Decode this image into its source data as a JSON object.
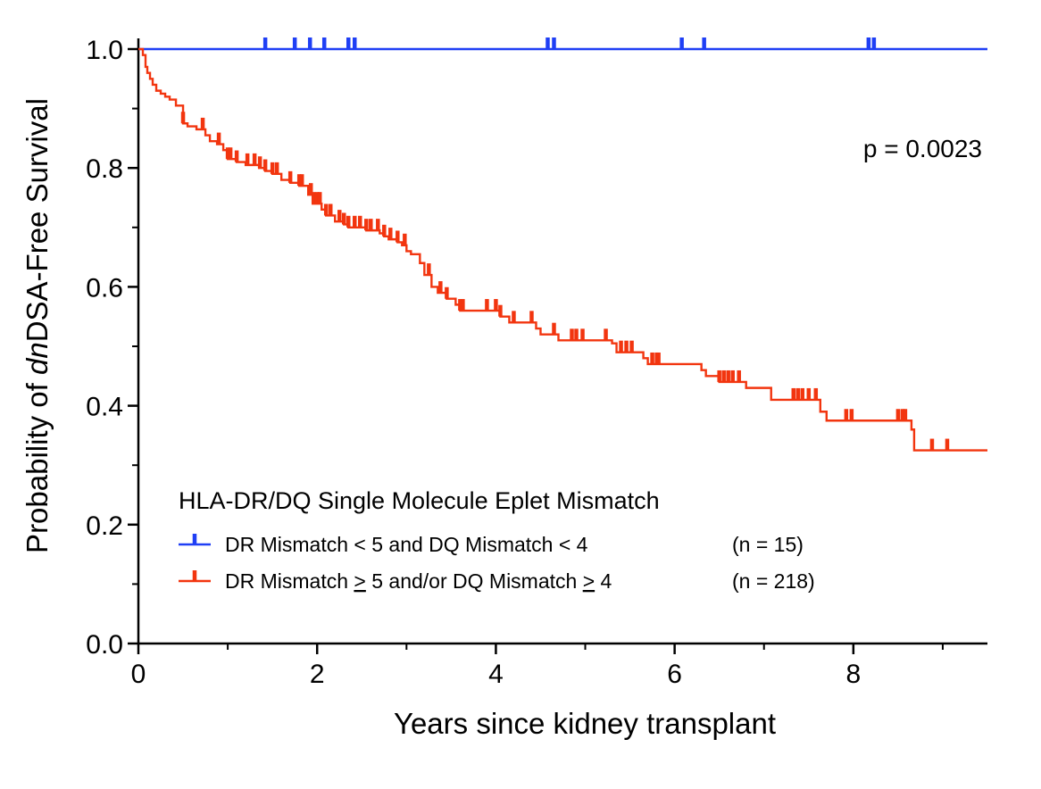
{
  "chart_data": {
    "type": "line",
    "subtype": "kaplan-meier",
    "xlabel": "Years since kidney transplant",
    "ylabel_pre": "Probability of ",
    "ylabel_italic": "dn",
    "ylabel_post": "DSA-Free Survival",
    "xlim": [
      0,
      9.5
    ],
    "ylim": [
      0,
      1.0
    ],
    "x_ticks": [
      "0",
      "2",
      "4",
      "6",
      "8"
    ],
    "y_ticks": [
      "0.0",
      "0.2",
      "0.4",
      "0.6",
      "0.8",
      "1.0"
    ],
    "annotation": "p = 0.0023",
    "legend_title": "HLA-DR/DQ Single Molecule Eplet Mismatch",
    "grid": false,
    "series": [
      {
        "label": "DR Mismatch < 5 and DQ Mismatch < 4",
        "n_label": "(n = 15)",
        "color": "#1f3ff5",
        "steps": [
          [
            0,
            1.0
          ],
          [
            9.5,
            1.0
          ]
        ],
        "censored": [
          1.42,
          1.75,
          1.92,
          2.08,
          2.35,
          2.42,
          4.58,
          4.65,
          6.08,
          6.33,
          8.17,
          8.23
        ]
      },
      {
        "label_pre": "DR Mismatch ",
        "label_mid": " 5 and/or DQ Mismatch ",
        "label_post": " 4",
        "ge_symbol": ">",
        "n_label": "(n = 218)",
        "color": "#f2350f",
        "steps": [
          [
            0,
            1.0
          ],
          [
            0.05,
            0.99
          ],
          [
            0.08,
            0.97
          ],
          [
            0.1,
            0.96
          ],
          [
            0.13,
            0.95
          ],
          [
            0.16,
            0.94
          ],
          [
            0.2,
            0.93
          ],
          [
            0.25,
            0.925
          ],
          [
            0.3,
            0.92
          ],
          [
            0.35,
            0.915
          ],
          [
            0.42,
            0.905
          ],
          [
            0.5,
            0.875
          ],
          [
            0.55,
            0.87
          ],
          [
            0.65,
            0.865
          ],
          [
            0.75,
            0.855
          ],
          [
            0.8,
            0.845
          ],
          [
            0.88,
            0.84
          ],
          [
            0.95,
            0.83
          ],
          [
            1.0,
            0.815
          ],
          [
            1.1,
            0.81
          ],
          [
            1.2,
            0.805
          ],
          [
            1.35,
            0.8
          ],
          [
            1.42,
            0.795
          ],
          [
            1.5,
            0.79
          ],
          [
            1.6,
            0.78
          ],
          [
            1.7,
            0.775
          ],
          [
            1.8,
            0.77
          ],
          [
            1.9,
            0.755
          ],
          [
            1.95,
            0.74
          ],
          [
            2.05,
            0.73
          ],
          [
            2.1,
            0.72
          ],
          [
            2.2,
            0.71
          ],
          [
            2.3,
            0.705
          ],
          [
            2.35,
            0.7
          ],
          [
            2.55,
            0.695
          ],
          [
            2.7,
            0.69
          ],
          [
            2.75,
            0.685
          ],
          [
            2.8,
            0.68
          ],
          [
            2.9,
            0.675
          ],
          [
            2.95,
            0.67
          ],
          [
            3.0,
            0.66
          ],
          [
            3.05,
            0.655
          ],
          [
            3.15,
            0.64
          ],
          [
            3.2,
            0.62
          ],
          [
            3.28,
            0.6
          ],
          [
            3.35,
            0.59
          ],
          [
            3.45,
            0.58
          ],
          [
            3.55,
            0.57
          ],
          [
            3.6,
            0.56
          ],
          [
            4.05,
            0.55
          ],
          [
            4.15,
            0.54
          ],
          [
            4.45,
            0.53
          ],
          [
            4.5,
            0.52
          ],
          [
            4.7,
            0.51
          ],
          [
            5.3,
            0.505
          ],
          [
            5.35,
            0.5
          ],
          [
            5.35,
            0.49
          ],
          [
            5.65,
            0.48
          ],
          [
            5.7,
            0.47
          ],
          [
            6.3,
            0.46
          ],
          [
            6.35,
            0.45
          ],
          [
            6.5,
            0.44
          ],
          [
            6.8,
            0.43
          ],
          [
            7.08,
            0.41
          ],
          [
            7.63,
            0.39
          ],
          [
            7.7,
            0.375
          ],
          [
            8.65,
            0.36
          ],
          [
            8.68,
            0.325
          ],
          [
            9.5,
            0.325
          ]
        ],
        "censored": [
          0.5,
          0.72,
          0.9,
          1.0,
          1.03,
          1.1,
          1.22,
          1.3,
          1.36,
          1.42,
          1.5,
          1.55,
          1.7,
          1.8,
          1.83,
          1.93,
          1.96,
          2.0,
          2.03,
          2.1,
          2.15,
          2.25,
          2.3,
          2.35,
          2.42,
          2.48,
          2.55,
          2.6,
          2.68,
          2.75,
          2.82,
          2.9,
          2.98,
          3.25,
          3.38,
          3.45,
          3.6,
          3.63,
          3.9,
          4.0,
          4.05,
          4.2,
          4.4,
          4.65,
          4.85,
          4.9,
          4.97,
          5.23,
          5.4,
          5.46,
          5.52,
          5.75,
          5.8,
          5.82,
          6.5,
          6.55,
          6.6,
          6.65,
          6.72,
          7.33,
          7.38,
          7.43,
          7.5,
          7.58,
          7.92,
          7.98,
          8.5,
          8.55,
          8.58,
          8.88,
          9.05
        ]
      }
    ]
  }
}
